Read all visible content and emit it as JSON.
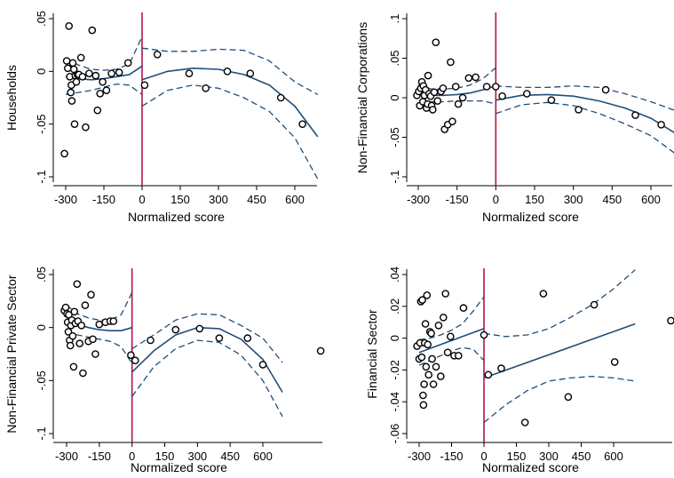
{
  "colors": {
    "cutoff": "#b5124a",
    "fit": "#1f4e79",
    "ci": "#1f4e79",
    "points": "#000000",
    "axis": "#000000"
  },
  "chart_data": [
    {
      "type": "scatter",
      "ylabel": "Households",
      "xlabel": "Normalized score",
      "xlim": [
        -330,
        700
      ],
      "ylim": [
        -0.1,
        0.05
      ],
      "xticks": [
        -300,
        -150,
        0,
        150,
        300,
        450,
        600
      ],
      "xtick_labels": [
        "-300",
        "-150",
        "0",
        "150",
        "300",
        "450",
        "600"
      ],
      "yticks": [
        -0.1,
        -0.05,
        0,
        0.05
      ],
      "ytick_labels": [
        "-.1",
        "-.05",
        "0",
        ".05"
      ],
      "cutoff": 0,
      "points": [
        [
          -305,
          -0.078
        ],
        [
          -296,
          0.01
        ],
        [
          -292,
          0.003
        ],
        [
          -287,
          0.043
        ],
        [
          -284,
          -0.005
        ],
        [
          -280,
          -0.02
        ],
        [
          -278,
          -0.013
        ],
        [
          -276,
          -0.028
        ],
        [
          -272,
          0.008
        ],
        [
          -268,
          0.002
        ],
        [
          -265,
          -0.05
        ],
        [
          -262,
          -0.004
        ],
        [
          -258,
          -0.01
        ],
        [
          -254,
          -0.003
        ],
        [
          -248,
          -0.003
        ],
        [
          -240,
          0.013
        ],
        [
          -234,
          -0.005
        ],
        [
          -222,
          -0.053
        ],
        [
          -208,
          -0.002
        ],
        [
          -196,
          0.039
        ],
        [
          -182,
          -0.004
        ],
        [
          -175,
          -0.037
        ],
        [
          -165,
          -0.021
        ],
        [
          -155,
          -0.01
        ],
        [
          -140,
          -0.018
        ],
        [
          -120,
          -0.002
        ],
        [
          -90,
          -0.001
        ],
        [
          -55,
          0.008
        ],
        [
          10,
          -0.013
        ],
        [
          60,
          0.016
        ],
        [
          185,
          -0.002
        ],
        [
          250,
          -0.016
        ],
        [
          335,
          0.0
        ],
        [
          425,
          -0.002
        ],
        [
          545,
          -0.025
        ],
        [
          630,
          -0.05
        ]
      ],
      "fit_left": {
        "x": [
          -300,
          -250,
          -200,
          -150,
          -100,
          -50,
          0
        ],
        "y": [
          -0.005,
          -0.007,
          -0.008,
          -0.007,
          -0.005,
          -0.003,
          0.005
        ]
      },
      "ci_left_upper": {
        "x": [
          -300,
          -250,
          -200,
          -150,
          -100,
          -50,
          0
        ],
        "y": [
          0.012,
          0.006,
          0.002,
          0.001,
          0.002,
          0.007,
          0.033
        ]
      },
      "ci_left_lower": {
        "x": [
          -300,
          -250,
          -200,
          -150,
          -100,
          -50,
          0
        ],
        "y": [
          -0.022,
          -0.02,
          -0.018,
          -0.015,
          -0.012,
          -0.013,
          -0.022
        ]
      },
      "fit_right": {
        "x": [
          0,
          100,
          200,
          300,
          400,
          500,
          600,
          690
        ],
        "y": [
          -0.008,
          0.0,
          0.003,
          0.002,
          -0.003,
          -0.013,
          -0.033,
          -0.062
        ]
      },
      "ci_right_upper": {
        "x": [
          0,
          100,
          200,
          300,
          400,
          500,
          600,
          690
        ],
        "y": [
          0.022,
          0.019,
          0.019,
          0.021,
          0.02,
          0.01,
          -0.01,
          -0.022
        ]
      },
      "ci_right_lower": {
        "x": [
          0,
          100,
          200,
          300,
          400,
          500,
          600,
          690
        ],
        "y": [
          -0.033,
          -0.018,
          -0.013,
          -0.016,
          -0.025,
          -0.038,
          -0.063,
          -0.102
        ]
      }
    },
    {
      "type": "scatter",
      "ylabel": "Non-Financial Corporations",
      "xlabel": "Normalized score",
      "xlim": [
        -330,
        700
      ],
      "ylim": [
        -0.1,
        0.1
      ],
      "xticks": [
        -300,
        -150,
        0,
        150,
        300,
        450,
        600
      ],
      "xtick_labels": [
        "-300",
        "-150",
        "0",
        "150",
        "300",
        "450",
        "600"
      ],
      "yticks": [
        -0.1,
        -0.05,
        0,
        0.05,
        0.1
      ],
      "ytick_labels": [
        "-.1",
        "-.05",
        "0",
        ".05",
        ".1"
      ],
      "cutoff": 0,
      "points": [
        [
          -305,
          0.003
        ],
        [
          -298,
          0.008
        ],
        [
          -294,
          -0.01
        ],
        [
          -290,
          0.012
        ],
        [
          -286,
          0.02
        ],
        [
          -282,
          -0.005
        ],
        [
          -280,
          0.015
        ],
        [
          -276,
          0.003
        ],
        [
          -272,
          0.01
        ],
        [
          -268,
          -0.013
        ],
        [
          -264,
          -0.008
        ],
        [
          -262,
          0.028
        ],
        [
          -258,
          0.005
        ],
        [
          -252,
          0.002
        ],
        [
          -248,
          -0.01
        ],
        [
          -244,
          -0.015
        ],
        [
          -238,
          0.007
        ],
        [
          -232,
          0.07
        ],
        [
          -225,
          -0.004
        ],
        [
          -212,
          0.008
        ],
        [
          -204,
          0.012
        ],
        [
          -198,
          -0.04
        ],
        [
          -186,
          -0.034
        ],
        [
          -175,
          0.045
        ],
        [
          -168,
          -0.03
        ],
        [
          -155,
          0.014
        ],
        [
          -145,
          -0.008
        ],
        [
          -128,
          0.0
        ],
        [
          -105,
          0.025
        ],
        [
          -78,
          0.026
        ],
        [
          -35,
          0.014
        ],
        [
          0,
          0.014
        ],
        [
          25,
          0.002
        ],
        [
          120,
          0.005
        ],
        [
          215,
          -0.003
        ],
        [
          320,
          -0.015
        ],
        [
          425,
          0.01
        ],
        [
          540,
          -0.022
        ],
        [
          640,
          -0.034
        ]
      ],
      "fit_left": {
        "x": [
          -300,
          -250,
          -200,
          -150,
          -100,
          -50,
          0
        ],
        "y": [
          0.004,
          0.003,
          0.003,
          0.004,
          0.006,
          0.01,
          0.015
        ]
      },
      "ci_left_upper": {
        "x": [
          -300,
          -250,
          -200,
          -150,
          -100,
          -50,
          0
        ],
        "y": [
          0.016,
          0.011,
          0.011,
          0.012,
          0.016,
          0.024,
          0.038
        ]
      },
      "ci_left_lower": {
        "x": [
          -300,
          -250,
          -200,
          -150,
          -100,
          -50,
          0
        ],
        "y": [
          -0.008,
          -0.005,
          -0.005,
          -0.004,
          -0.004,
          -0.004,
          -0.008
        ]
      },
      "fit_right": {
        "x": [
          0,
          100,
          200,
          300,
          400,
          500,
          600,
          700
        ],
        "y": [
          -0.003,
          0.003,
          0.004,
          0.002,
          -0.004,
          -0.013,
          -0.026,
          -0.046
        ]
      },
      "ci_right_upper": {
        "x": [
          0,
          100,
          200,
          300,
          400,
          500,
          600,
          700
        ],
        "y": [
          0.015,
          0.013,
          0.013,
          0.015,
          0.013,
          0.005,
          -0.005,
          -0.017
        ]
      },
      "ci_right_lower": {
        "x": [
          0,
          100,
          200,
          300,
          400,
          500,
          600,
          700
        ],
        "y": [
          -0.02,
          -0.009,
          -0.006,
          -0.01,
          -0.02,
          -0.033,
          -0.048,
          -0.072
        ]
      }
    },
    {
      "type": "scatter",
      "ylabel": "Non-Financial Private Sector",
      "xlabel": "Normalized score",
      "xlim": [
        -330,
        870
      ],
      "ylim": [
        -0.1,
        0.05
      ],
      "xticks": [
        -300,
        -150,
        0,
        150,
        300,
        450,
        600
      ],
      "xtick_labels": [
        "-300",
        "-150",
        "0",
        "150",
        "300",
        "450",
        "600"
      ],
      "yticks": [
        -0.1,
        -0.05,
        0,
        0.05
      ],
      "ytick_labels": [
        "-.1",
        "-.05",
        "0",
        ".05"
      ],
      "cutoff": 0,
      "points": [
        [
          -310,
          0.016
        ],
        [
          -304,
          0.019
        ],
        [
          -298,
          0.013
        ],
        [
          -295,
          0.005
        ],
        [
          -292,
          -0.004
        ],
        [
          -290,
          0.012
        ],
        [
          -286,
          -0.012
        ],
        [
          -283,
          -0.017
        ],
        [
          -280,
          0.002
        ],
        [
          -276,
          0.007
        ],
        [
          -272,
          -0.008
        ],
        [
          -268,
          -0.037
        ],
        [
          -264,
          0.015
        ],
        [
          -260,
          0.004
        ],
        [
          -252,
          0.041
        ],
        [
          -248,
          0.006
        ],
        [
          -240,
          -0.015
        ],
        [
          -232,
          0.002
        ],
        [
          -225,
          -0.043
        ],
        [
          -215,
          0.021
        ],
        [
          -200,
          -0.013
        ],
        [
          -188,
          0.031
        ],
        [
          -180,
          -0.011
        ],
        [
          -168,
          -0.025
        ],
        [
          -150,
          0.003
        ],
        [
          -122,
          0.005
        ],
        [
          -100,
          0.006
        ],
        [
          -85,
          0.006
        ],
        [
          -5,
          -0.026
        ],
        [
          15,
          -0.031
        ],
        [
          85,
          -0.012
        ],
        [
          200,
          -0.002
        ],
        [
          310,
          -0.001
        ],
        [
          400,
          -0.01
        ],
        [
          530,
          -0.01
        ],
        [
          600,
          -0.035
        ],
        [
          865,
          -0.022
        ]
      ],
      "fit_left": {
        "x": [
          -300,
          -250,
          -200,
          -150,
          -100,
          -50,
          0
        ],
        "y": [
          0.008,
          0.003,
          0.0,
          -0.002,
          -0.003,
          -0.003,
          0.0
        ]
      },
      "ci_left_upper": {
        "x": [
          -300,
          -250,
          -200,
          -150,
          -100,
          -50,
          0
        ],
        "y": [
          0.021,
          0.013,
          0.009,
          0.007,
          0.007,
          0.012,
          0.033
        ]
      },
      "ci_left_lower": {
        "x": [
          -300,
          -250,
          -200,
          -150,
          -100,
          -50,
          0
        ],
        "y": [
          -0.005,
          -0.007,
          -0.009,
          -0.011,
          -0.013,
          -0.018,
          -0.034
        ]
      },
      "fit_right": {
        "x": [
          0,
          100,
          200,
          300,
          400,
          500,
          600,
          690
        ],
        "y": [
          -0.042,
          -0.022,
          -0.007,
          0.0,
          -0.001,
          -0.011,
          -0.03,
          -0.061
        ]
      },
      "ci_right_upper": {
        "x": [
          0,
          100,
          200,
          300,
          400,
          500,
          600,
          690
        ],
        "y": [
          -0.02,
          -0.007,
          0.007,
          0.013,
          0.012,
          0.002,
          -0.01,
          -0.033
        ]
      },
      "ci_right_lower": {
        "x": [
          0,
          100,
          200,
          300,
          400,
          500,
          600,
          690
        ],
        "y": [
          -0.065,
          -0.037,
          -0.02,
          -0.012,
          -0.014,
          -0.026,
          -0.05,
          -0.084
        ]
      }
    },
    {
      "type": "scatter",
      "ylabel": "Financial Sector",
      "xlabel": "Normalized score",
      "xlim": [
        -330,
        870
      ],
      "ylim": [
        -0.06,
        0.04
      ],
      "xticks": [
        -300,
        -150,
        0,
        150,
        300,
        450,
        600
      ],
      "xtick_labels": [
        "-300",
        "-150",
        "0",
        "150",
        "300",
        "450",
        "600"
      ],
      "yticks": [
        -0.06,
        -0.04,
        -0.02,
        0,
        0.02,
        0.04
      ],
      "ytick_labels": [
        "-.06",
        "-.04",
        "-.02",
        "0",
        ".02",
        ".04"
      ],
      "cutoff": 0,
      "points": [
        [
          -310,
          -0.005
        ],
        [
          -300,
          -0.013
        ],
        [
          -296,
          -0.003
        ],
        [
          -292,
          0.023
        ],
        [
          -288,
          -0.012
        ],
        [
          -285,
          0.024
        ],
        [
          -282,
          -0.036
        ],
        [
          -280,
          -0.042
        ],
        [
          -277,
          -0.029
        ],
        [
          -274,
          -0.003
        ],
        [
          -271,
          0.009
        ],
        [
          -268,
          -0.018
        ],
        [
          -264,
          0.027
        ],
        [
          -260,
          -0.004
        ],
        [
          -256,
          -0.023
        ],
        [
          -250,
          0.004
        ],
        [
          -244,
          0.003
        ],
        [
          -240,
          -0.013
        ],
        [
          -234,
          -0.029
        ],
        [
          -222,
          -0.018
        ],
        [
          -210,
          0.008
        ],
        [
          -200,
          -0.024
        ],
        [
          -188,
          0.013
        ],
        [
          -178,
          0.028
        ],
        [
          -168,
          -0.009
        ],
        [
          -155,
          0.001
        ],
        [
          -138,
          -0.011
        ],
        [
          -118,
          -0.011
        ],
        [
          -95,
          0.019
        ],
        [
          0,
          0.002
        ],
        [
          20,
          -0.023
        ],
        [
          80,
          -0.019
        ],
        [
          190,
          -0.053
        ],
        [
          275,
          0.028
        ],
        [
          390,
          -0.037
        ],
        [
          510,
          0.021
        ],
        [
          605,
          -0.015
        ],
        [
          865,
          0.011
        ]
      ],
      "fit_left": {
        "x": [
          -300,
          -200,
          -100,
          0
        ],
        "y": [
          -0.009,
          -0.004,
          0.001,
          0.006
        ]
      },
      "ci_left_upper": {
        "x": [
          -300,
          -250,
          -200,
          -150,
          -100,
          -50,
          0
        ],
        "y": [
          -0.001,
          0.0,
          0.002,
          0.005,
          0.009,
          0.017,
          0.026
        ]
      },
      "ci_left_lower": {
        "x": [
          -300,
          -250,
          -200,
          -150,
          -100,
          -50,
          0
        ],
        "y": [
          -0.017,
          -0.014,
          -0.011,
          -0.008,
          -0.006,
          -0.007,
          -0.014
        ]
      },
      "fit_right": {
        "x": [
          0,
          700
        ],
        "y": [
          -0.025,
          0.009
        ]
      },
      "ci_right_upper": {
        "x": [
          0,
          100,
          200,
          300,
          400,
          500,
          600,
          700
        ],
        "y": [
          0.003,
          0.001,
          0.002,
          0.006,
          0.013,
          0.021,
          0.031,
          0.043
        ]
      },
      "ci_right_lower": {
        "x": [
          0,
          100,
          200,
          300,
          400,
          500,
          600,
          700
        ],
        "y": [
          -0.053,
          -0.042,
          -0.033,
          -0.027,
          -0.025,
          -0.024,
          -0.025,
          -0.027
        ]
      }
    }
  ]
}
